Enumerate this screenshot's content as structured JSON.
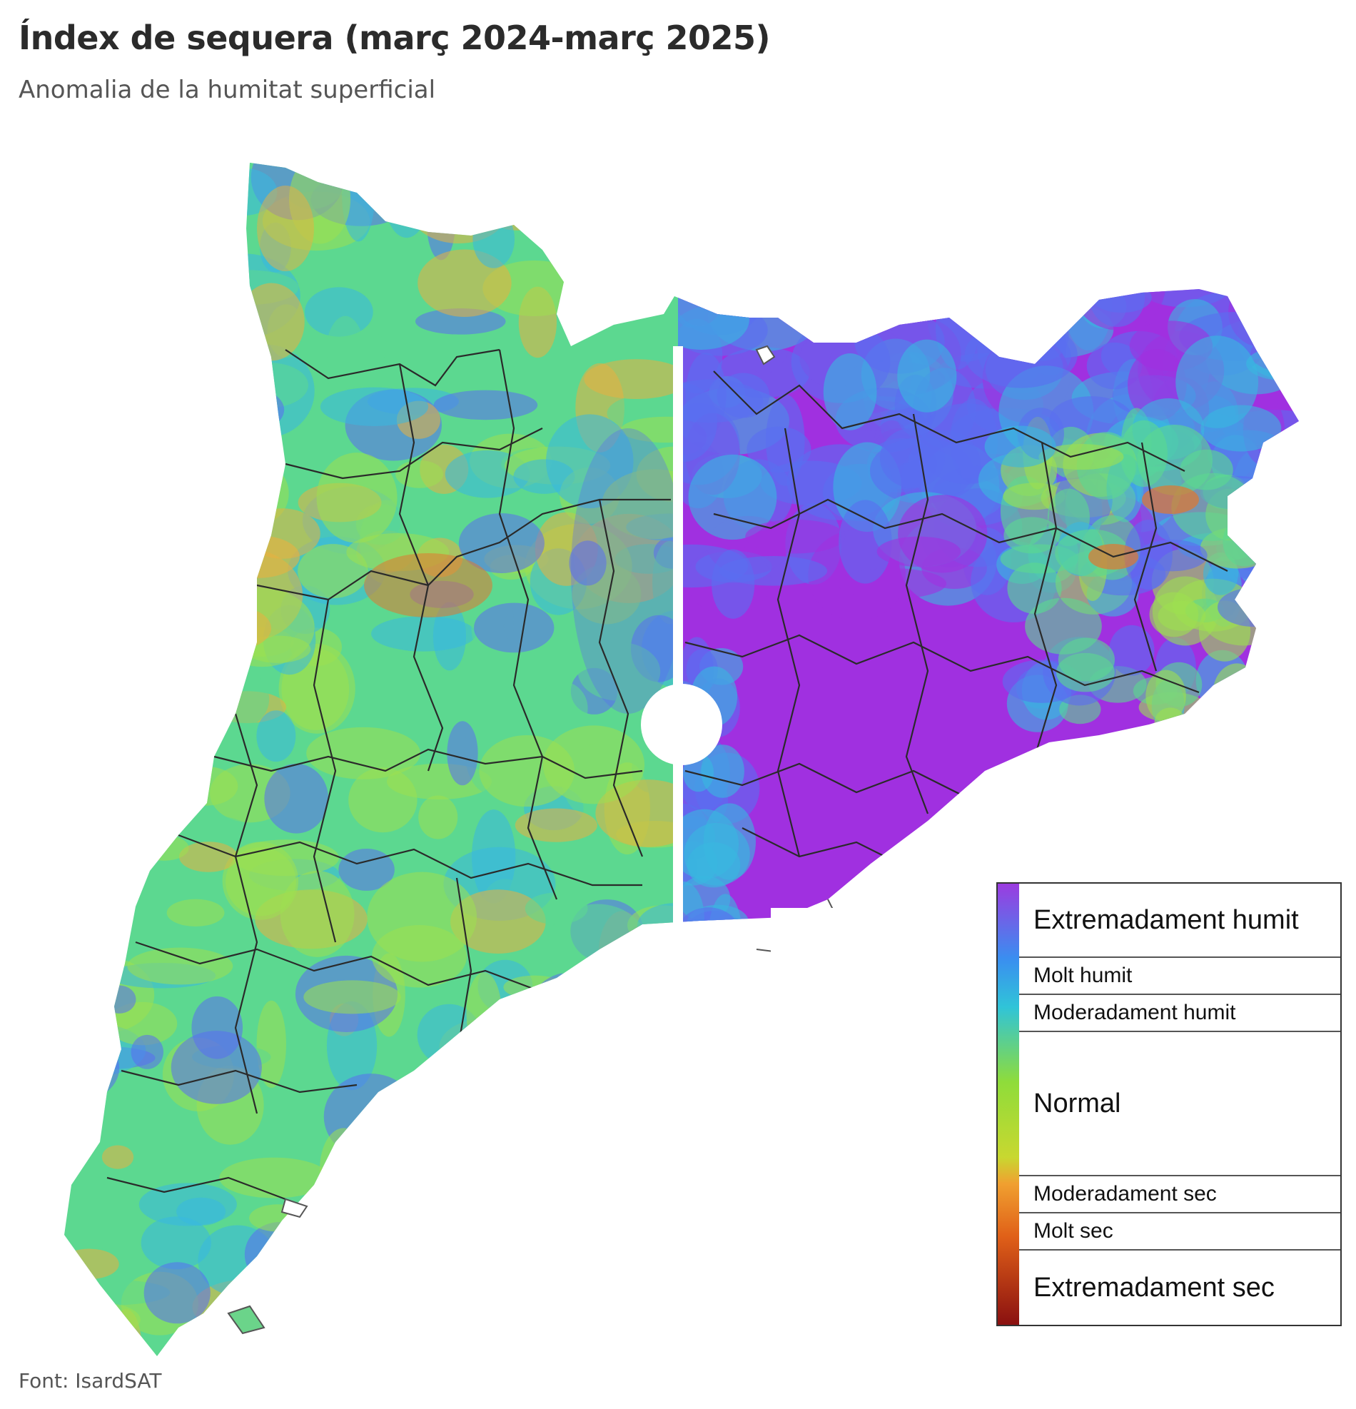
{
  "title": "Índex de sequera (març 2024-març 2025)",
  "subtitle": "Anomalia de la humitat superficial",
  "source": "Font: IsardSAT",
  "legend": {
    "items": [
      {
        "label": "Extremadament humit",
        "color": "#9b3ce0"
      },
      {
        "label": "Molt humit",
        "color": "#3a8ef0"
      },
      {
        "label": "Moderadament humit",
        "color": "#30c4d8"
      },
      {
        "label": "Normal",
        "color": "#8fdc3a"
      },
      {
        "label": "Moderadament sec",
        "color": "#f0a030"
      },
      {
        "label": "Molt sec",
        "color": "#e06018"
      },
      {
        "label": "Extremadament sec",
        "color": "#8a1010"
      }
    ]
  },
  "colors": {
    "extremely_wet": "#a030e0",
    "very_wet": "#5a6ef0",
    "mod_wet": "#38b8e0",
    "normal_a": "#5cd890",
    "normal_b": "#9ce050",
    "mod_dry": "#e8b040",
    "very_dry": "#e07830",
    "divider": "#ffffff",
    "border_lines": "#2a2a2a"
  }
}
